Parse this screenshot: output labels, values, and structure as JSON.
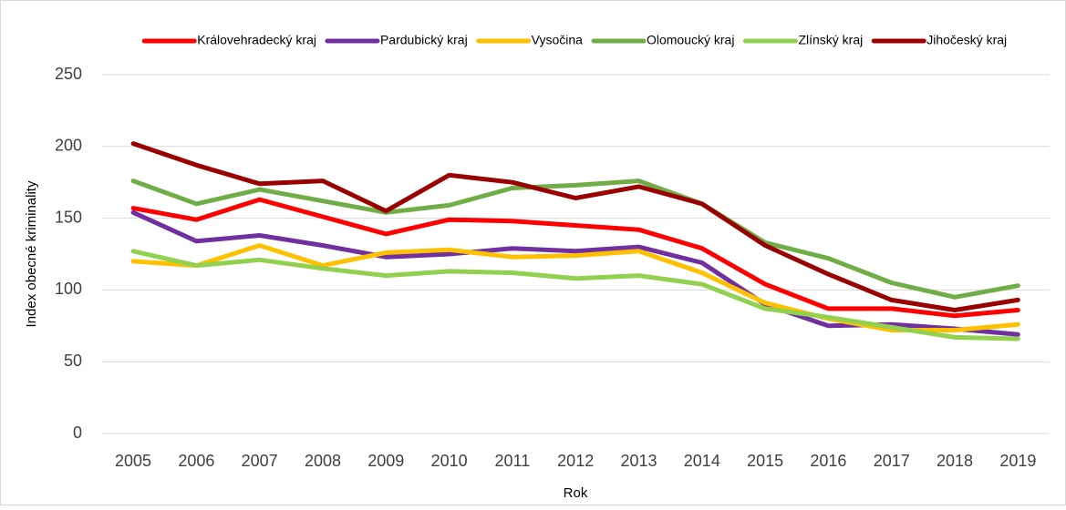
{
  "chart_data": {
    "type": "line",
    "categories": [
      "2005",
      "2006",
      "2007",
      "2008",
      "2009",
      "2010",
      "2011",
      "2012",
      "2013",
      "2014",
      "2015",
      "2016",
      "2017",
      "2018",
      "2019"
    ],
    "x_label": "Rok",
    "y_label": "Index obecné kriminality",
    "ylim": [
      0,
      250
    ],
    "yticks": [
      0,
      50,
      100,
      150,
      200,
      250
    ],
    "grid": true,
    "legend": "top",
    "series": [
      {
        "name": "Královehradecký kraj",
        "color": "#ff0000",
        "values": [
          157,
          149,
          163,
          151,
          139,
          149,
          148,
          145,
          142,
          129,
          104,
          87,
          87,
          82,
          86
        ]
      },
      {
        "name": "Pardubický kraj",
        "color": "#7030a0",
        "values": [
          154,
          134,
          138,
          131,
          123,
          125,
          129,
          127,
          130,
          119,
          90,
          75,
          76,
          73,
          69
        ]
      },
      {
        "name": "Vysočina",
        "color": "#ffc000",
        "values": [
          120,
          117,
          131,
          117,
          126,
          128,
          123,
          124,
          127,
          112,
          91,
          80,
          72,
          72,
          76
        ]
      },
      {
        "name": "Olomoucký kraj",
        "color": "#70ad47",
        "values": [
          176,
          160,
          170,
          162,
          154,
          159,
          171,
          173,
          176,
          160,
          133,
          122,
          105,
          95,
          103
        ]
      },
      {
        "name": "Zlínský kraj",
        "color": "#92d050",
        "values": [
          127,
          117,
          121,
          115,
          110,
          113,
          112,
          108,
          110,
          104,
          87,
          81,
          74,
          67,
          66
        ]
      },
      {
        "name": "Jihočeský kraj",
        "color": "#990000",
        "values": [
          202,
          187,
          174,
          176,
          155,
          180,
          175,
          164,
          172,
          160,
          131,
          111,
          93,
          86,
          93
        ]
      }
    ]
  }
}
